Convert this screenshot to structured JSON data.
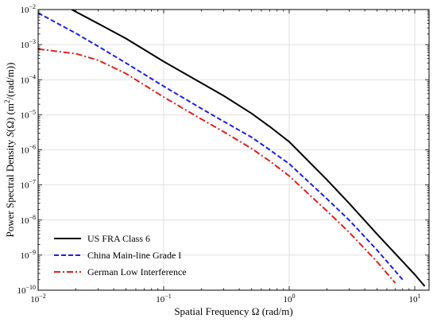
{
  "chart_data": {
    "type": "line",
    "title": "",
    "xlabel": "Spatial Frequency Ω (rad/m)",
    "ylabel": {
      "prefix": "Power Spectral Density ",
      "func": "S",
      "mid": "(Ω) (m",
      "sup": "2",
      "suffix": "/(rad/m))"
    },
    "xscale": "log",
    "yscale": "log",
    "xlim": [
      0.01,
      13
    ],
    "ylim": [
      1e-10,
      0.01
    ],
    "grid": true,
    "legend_position": "bottom-left",
    "x_ticks": [
      {
        "value": 0.01,
        "base": "10",
        "exp": "−2"
      },
      {
        "value": 0.1,
        "base": "10",
        "exp": "−1"
      },
      {
        "value": 1,
        "base": "10",
        "exp": "0"
      },
      {
        "value": 10,
        "base": "10",
        "exp": "1"
      }
    ],
    "y_ticks": [
      {
        "value": 1e-10,
        "base": "10",
        "exp": "−10"
      },
      {
        "value": 1e-09,
        "base": "10",
        "exp": "−9"
      },
      {
        "value": 1e-08,
        "base": "10",
        "exp": "−8"
      },
      {
        "value": 1e-07,
        "base": "10",
        "exp": "−7"
      },
      {
        "value": 1e-06,
        "base": "10",
        "exp": "−6"
      },
      {
        "value": 1e-05,
        "base": "10",
        "exp": "−5"
      },
      {
        "value": 0.0001,
        "base": "10",
        "exp": "−4"
      },
      {
        "value": 0.001,
        "base": "10",
        "exp": "−3"
      },
      {
        "value": 0.01,
        "base": "10",
        "exp": "−2"
      }
    ],
    "series": [
      {
        "name": "US FRA Class 6",
        "color": "#000000",
        "dash": "solid",
        "x": [
          0.0185,
          0.03,
          0.05,
          0.1,
          0.2,
          0.3,
          0.5,
          0.7,
          1,
          2,
          3,
          5,
          7,
          10,
          12
        ],
        "y": [
          0.01,
          0.004,
          0.0015,
          0.00033,
          8e-05,
          3.5e-05,
          1.1e-05,
          4.6e-06,
          1.7e-06,
          1.4e-07,
          3e-08,
          4e-09,
          1.1e-09,
          2.8e-10,
          1.3e-10
        ]
      },
      {
        "name": "China Main-line Grade I",
        "color": "#1f1fe0",
        "dash": "dashed",
        "x": [
          0.01,
          0.02,
          0.03,
          0.05,
          0.1,
          0.2,
          0.3,
          0.5,
          0.7,
          1,
          2,
          3,
          5,
          7,
          8
        ],
        "y": [
          0.008,
          0.0021,
          0.0009,
          0.0003,
          6.5e-05,
          1.5e-05,
          6.5e-06,
          2.3e-06,
          1e-06,
          4e-07,
          4e-08,
          1e-08,
          1.4e-09,
          3.5e-10,
          2e-10
        ]
      },
      {
        "name": "German Low Interference",
        "color": "#e01f1f",
        "dash": "dashdot",
        "x": [
          0.01,
          0.02,
          0.03,
          0.05,
          0.1,
          0.2,
          0.3,
          0.5,
          0.7,
          1,
          2,
          3,
          5,
          7
        ],
        "y": [
          0.00075,
          0.00055,
          0.00036,
          0.00015,
          3.2e-05,
          7.5e-06,
          3.3e-06,
          1.1e-06,
          4.8e-07,
          1.8e-07,
          1.8e-08,
          4.5e-09,
          6.5e-10,
          1.6e-10
        ]
      }
    ]
  }
}
